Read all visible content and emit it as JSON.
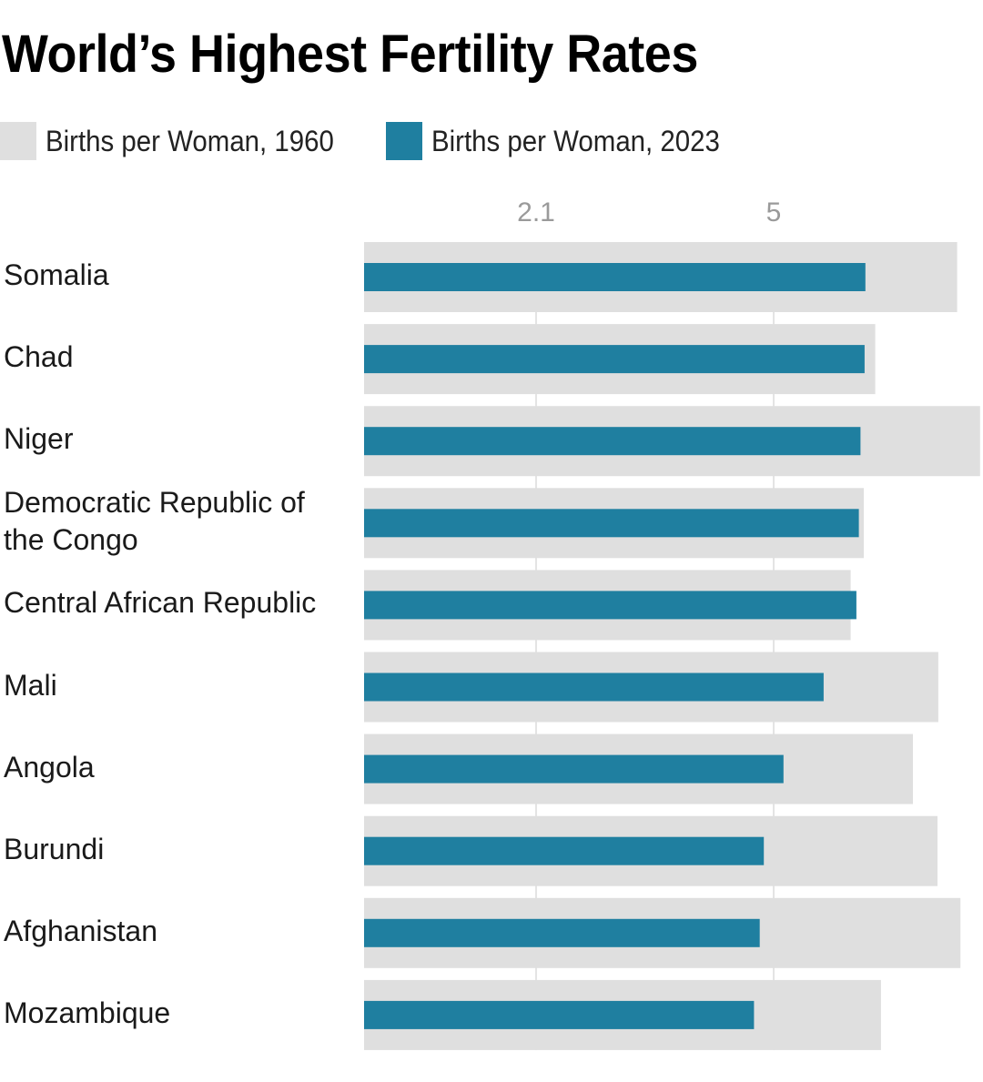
{
  "title": "World’s Highest Fertility Rates",
  "legend": [
    {
      "label": "Births per Woman, 1960",
      "color": "#dfdfdf"
    },
    {
      "label": "Births per Woman, 2023",
      "color": "#1f7fa0"
    }
  ],
  "chart_data": {
    "type": "bar",
    "orientation": "horizontal",
    "title": "World’s Highest Fertility Rates",
    "xlabel": "",
    "ylabel": "",
    "xlim": [
      0,
      7.5
    ],
    "ticks": [
      {
        "value": 2.1,
        "label": "2.1"
      },
      {
        "value": 5,
        "label": "5"
      }
    ],
    "grid": true,
    "legend_position": "top-left",
    "categories": [
      "Somalia",
      "Chad",
      "Niger",
      "Democratic Republic of the Congo",
      "Central African Republic",
      "Mali",
      "Angola",
      "Burundi",
      "Afghanistan",
      "Mozambique"
    ],
    "category_labels": [
      [
        "Somalia"
      ],
      [
        "Chad"
      ],
      [
        "Niger"
      ],
      [
        "Democratic Republic of",
        "the Congo"
      ],
      [
        "Central African Republic"
      ],
      [
        "Mali"
      ],
      [
        "Angola"
      ],
      [
        "Burundi"
      ],
      [
        "Afghanistan"
      ],
      [
        "Mozambique"
      ]
    ],
    "series": [
      {
        "name": "Births per Woman, 1960",
        "color": "#dfdfdf",
        "values": [
          7.24,
          6.24,
          7.52,
          6.1,
          5.94,
          7.01,
          6.7,
          7.0,
          7.28,
          6.31
        ]
      },
      {
        "name": "Births per Woman, 2023",
        "color": "#1f7fa0",
        "values": [
          6.12,
          6.11,
          6.06,
          6.04,
          6.01,
          5.61,
          5.12,
          4.88,
          4.83,
          4.76
        ]
      }
    ]
  }
}
